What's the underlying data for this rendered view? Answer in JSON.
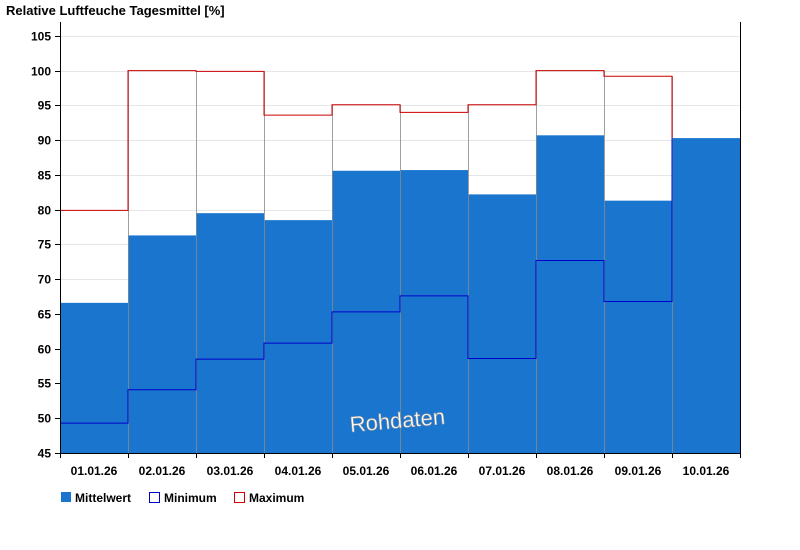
{
  "chart_data": {
    "type": "bar",
    "title": "Relative Luftfeuche Tagesmittel [%]",
    "categories": [
      "01.01.26",
      "02.01.26",
      "03.01.26",
      "04.01.26",
      "05.01.26",
      "06.01.26",
      "07.01.26",
      "08.01.26",
      "09.01.26",
      "10.01.26"
    ],
    "series": [
      {
        "name": "Mittelwert",
        "kind": "bar",
        "values": [
          66.6,
          76.3,
          79.5,
          78.5,
          85.6,
          85.7,
          82.2,
          90.7,
          81.3,
          90.3
        ]
      },
      {
        "name": "Minimum",
        "kind": "step",
        "values": [
          49.3,
          54.1,
          58.5,
          60.8,
          65.3,
          67.6,
          58.6,
          72.7,
          66.8,
          null
        ]
      },
      {
        "name": "Maximum",
        "kind": "step",
        "values": [
          79.9,
          100.0,
          99.9,
          93.6,
          95.1,
          94.0,
          95.1,
          100.0,
          99.2,
          null
        ]
      }
    ],
    "ylim": [
      45,
      107
    ],
    "yticks": [
      45,
      50,
      55,
      60,
      65,
      70,
      75,
      80,
      85,
      90,
      95,
      100,
      105
    ],
    "grid": true,
    "legend_position": "bottom-left",
    "watermark": "Rohdaten",
    "colors": {
      "bar": "#1a75cf",
      "minimum": "#0000cc",
      "maximum": "#cc0000",
      "grid": "#e6e6e6",
      "divider": "#888888"
    }
  }
}
